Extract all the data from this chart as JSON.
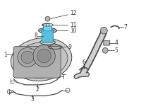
{
  "bg_color": "#ffffff",
  "line_color": "#4a4a4a",
  "highlight_color": "#5bbfde",
  "highlight_dark": "#2a8aaa",
  "gray_fill": "#d0d0d0",
  "gray_mid": "#b8b8b8",
  "gray_dark": "#a0a0a0",
  "label_color": "#333333",
  "fig_width": 2.0,
  "fig_height": 1.47,
  "dpi": 100
}
